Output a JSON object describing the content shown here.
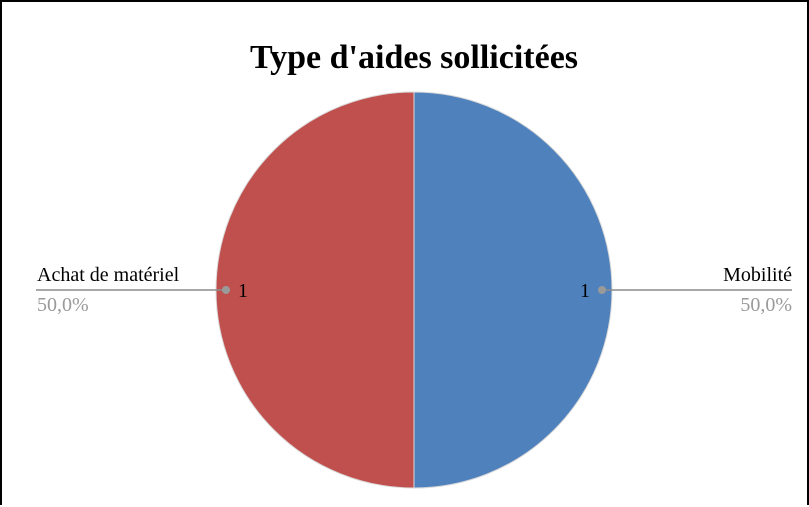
{
  "chart_data": {
    "type": "pie",
    "title": "Type d'aides sollicitées",
    "start_angle_deg": 0,
    "direction": "clockwise",
    "slices": [
      {
        "label": "Mobilité",
        "value": 1,
        "value_label": "1",
        "percent_label": "50,0%",
        "color": "#4f81bd"
      },
      {
        "label": "Achat de matériel",
        "value": 1,
        "value_label": "1",
        "percent_label": "50,0%",
        "color": "#c0504d"
      }
    ],
    "legend": "none",
    "leader_line_color": "#8c8c8c",
    "slice_border_color": "#d9d9d9"
  }
}
